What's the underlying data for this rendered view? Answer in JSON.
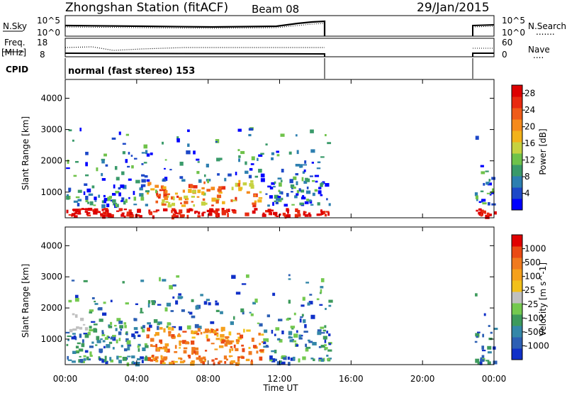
{
  "header": {
    "station": "Zhongshan Station (fitACF)",
    "beam": "Beam 08",
    "date": "29/Jan/2015"
  },
  "nsky_panel": {
    "left_label": "N.Sky",
    "left_ticks": [
      "10^5",
      "10^0"
    ],
    "right_ticks": [
      "10^5",
      "10^0"
    ],
    "right_label": "N.Search",
    "right_legend_dots": "......."
  },
  "freq_panel": {
    "left_label_1": "Freq.",
    "left_label_2": "[MHz]",
    "left_ticks": [
      "18",
      "8"
    ],
    "right_ticks": [
      "60",
      "0"
    ],
    "right_label": "Nave",
    "right_legend_dots": "...."
  },
  "cpid": {
    "label": "CPID",
    "value": "normal (fast stereo) 153"
  },
  "chart_data": [
    {
      "type": "heatmap",
      "title": "",
      "xlabel": "Time UT",
      "ylabel": "Slant Range [km]",
      "x_ticks": [
        "00:00",
        "04:00",
        "08:00",
        "12:00",
        "16:00",
        "20:00",
        "00:00"
      ],
      "y_ticks": [
        1000,
        2000,
        3000,
        4000
      ],
      "ylim": [
        180,
        4600
      ],
      "data_gap_utc": [
        "14:45",
        "22:55"
      ],
      "colorbar": {
        "label": "Power [dB]",
        "ticks": [
          "4",
          "8",
          "12",
          "16",
          "20",
          "24",
          "28"
        ],
        "colors": [
          "#0000ff",
          "#1d48c8",
          "#2d7fb0",
          "#3a9a6a",
          "#6fc24a",
          "#c6d240",
          "#f2b21a",
          "#f58a1c",
          "#ef5b18",
          "#e82a10",
          "#dd0000"
        ]
      }
    },
    {
      "type": "heatmap",
      "title": "",
      "xlabel": "Time UT",
      "ylabel": "Slant Range [km]",
      "x_ticks": [
        "00:00",
        "04:00",
        "08:00",
        "12:00",
        "16:00",
        "20:00",
        "00:00"
      ],
      "y_ticks": [
        1000,
        2000,
        3000,
        4000
      ],
      "ylim": [
        180,
        4600
      ],
      "data_gap_utc": [
        "14:45",
        "22:55"
      ],
      "colorbar": {
        "label": "Velocity [m s^-1]",
        "ticks": [
          "1000",
          "500",
          "100",
          "25",
          "-25",
          "-100",
          "-500",
          "-1000"
        ],
        "colors": [
          "#1030c8",
          "#2c5fb4",
          "#3487a8",
          "#3d9a5c",
          "#74c94f",
          "#c0c0c0",
          "#f2c01a",
          "#f5a01c",
          "#f07a1e",
          "#ea4a14",
          "#e00000"
        ]
      }
    }
  ]
}
